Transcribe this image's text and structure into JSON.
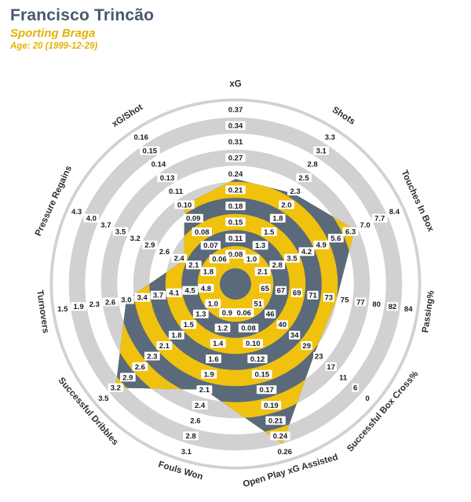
{
  "header": {
    "player_name": "Francisco Trincão",
    "team_name": "Sporting Braga",
    "age_line": "Age: 20 (1999-12-29)"
  },
  "chart_data": {
    "type": "radar",
    "rings": 10,
    "legend_position": "none",
    "grid": "concentric-bands",
    "colors": {
      "slate": "#5a6a7b",
      "yellow": "#f0c20e",
      "band_gray": "#d1d1d1",
      "tick_text": "#1c1c1c",
      "axis_text": "#2e2e2e"
    },
    "axes": [
      {
        "label": "xG",
        "value": 0.23,
        "ticks": [
          "0.08",
          "0.11",
          "0.15",
          "0.18",
          "0.21",
          "0.24",
          "0.27",
          "0.31",
          "0.34",
          "0.37"
        ]
      },
      {
        "label": "Shots",
        "value": 2.25,
        "ticks": [
          "1.0",
          "1.3",
          "1.5",
          "1.8",
          "2.0",
          "2.3",
          "2.5",
          "2.8",
          "3.1",
          "3.3"
        ]
      },
      {
        "label": "Touches In Box",
        "value": 6.5,
        "ticks": [
          "2.1",
          "2.8",
          "3.5",
          "4.2",
          "4.9",
          "5.6",
          "6.3",
          "7.0",
          "7.7",
          "8.4"
        ]
      },
      {
        "label": "Passing%",
        "value": 74,
        "ticks": [
          "65",
          "67",
          "69",
          "71",
          "73",
          "75",
          "77",
          "80",
          "82",
          "84"
        ]
      },
      {
        "label": "Successful Box Cross%",
        "value": 25,
        "ticks": [
          "51",
          "46",
          "40",
          "34",
          "29",
          "23",
          "17",
          "11",
          "6",
          "0"
        ]
      },
      {
        "label": "Open Play xG Assisted",
        "value": 0.25,
        "ticks": [
          "0.06",
          "0.08",
          "0.10",
          "0.12",
          "0.15",
          "0.17",
          "0.19",
          "0.21",
          "0.24",
          "0.26"
        ]
      },
      {
        "label": "Fouls Won",
        "value": 2.1,
        "ticks": [
          "0.9",
          "1.2",
          "1.4",
          "1.6",
          "1.9",
          "2.1",
          "2.4",
          "2.6",
          "2.8",
          "3.1"
        ]
      },
      {
        "label": "Successful Dribbles",
        "value": 3.2,
        "ticks": [
          "1.0",
          "1.3",
          "1.5",
          "1.8",
          "2.1",
          "2.3",
          "2.6",
          "2.9",
          "3.2",
          "3.5"
        ]
      },
      {
        "label": "Turnovers",
        "value": 3.0,
        "ticks": [
          "4.8",
          "4.5",
          "4.1",
          "3.7",
          "3.4",
          "3.0",
          "2.6",
          "2.3",
          "1.9",
          "1.5"
        ]
      },
      {
        "label": "Pressure Regains",
        "value": 2.3,
        "ticks": [
          "1.8",
          "2.1",
          "2.4",
          "2.6",
          "2.9",
          "3.2",
          "3.5",
          "3.7",
          "4.0",
          "4.3"
        ]
      },
      {
        "label": "xG/Shot",
        "value": 0.1,
        "ticks": [
          "0.06",
          "0.07",
          "0.08",
          "0.09",
          "0.10",
          "0.11",
          "0.13",
          "0.14",
          "0.15",
          "0.16"
        ]
      }
    ]
  }
}
